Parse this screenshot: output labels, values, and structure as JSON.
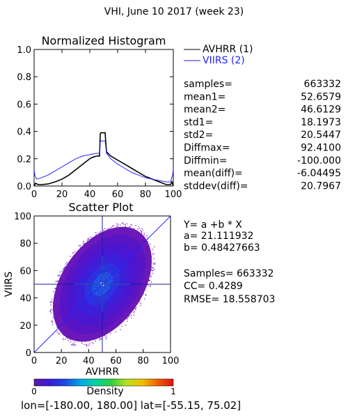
{
  "page_title": "VHI,  June 10 2017 (week 23)",
  "histogram": {
    "title": "Normalized Histogram",
    "legend": [
      {
        "name": "AVHRR (1)",
        "color": "#000000"
      },
      {
        "name": "VIIRS (2)",
        "color": "#2222ff"
      }
    ],
    "x_ticks": [
      "0",
      "20",
      "40",
      "60",
      "80",
      "100"
    ],
    "y_ticks": [
      "0.0",
      "0.2",
      "0.4",
      "0.6",
      "0.8",
      "1.0"
    ]
  },
  "stats": [
    {
      "label": "samples=",
      "value": "663332"
    },
    {
      "label": "mean1=",
      "value": "52.6579"
    },
    {
      "label": "mean2=",
      "value": "46.6129"
    },
    {
      "label": "std1=",
      "value": "18.1973"
    },
    {
      "label": "std2=",
      "value": "20.5447"
    },
    {
      "label": "Diffmax=",
      "value": "92.4100"
    },
    {
      "label": "Diffmin=",
      "value": "-100.000"
    },
    {
      "label": "mean(diff)=",
      "value": "-6.04495"
    },
    {
      "label": "stddev(diff)=",
      "value": "20.7967"
    }
  ],
  "scatter": {
    "title": "Scatter Plot",
    "xlabel": "AVHRR",
    "ylabel": "VIIRS",
    "x_ticks": [
      "0",
      "20",
      "40",
      "60",
      "80",
      "100"
    ],
    "y_ticks": [
      "0",
      "20",
      "40",
      "60",
      "80",
      "100"
    ]
  },
  "regression": {
    "line1": "Y= a +b * X",
    "line2": "a= 21.111932",
    "line3": "b= 0.48427663",
    "line4": "Samples= 663332",
    "line5": "CC=  0.4289",
    "line6": "RMSE= 18.558703"
  },
  "colorbar": {
    "min_label": "0",
    "max_label": "1",
    "label": "Density",
    "colors": [
      "#5b1aa6",
      "#3a1ad8",
      "#1a4ae0",
      "#00a8e8",
      "#00d4a0",
      "#30d040",
      "#b8e020",
      "#f0c000",
      "#f06000",
      "#e01010"
    ]
  },
  "footer": "lon=[-180.00, 180.00] lat=[-55.15, 75.02]",
  "chart_data": [
    {
      "type": "line",
      "title": "Normalized Histogram",
      "xlabel": "",
      "ylabel": "",
      "xlim": [
        0,
        100
      ],
      "ylim": [
        0,
        1.0
      ],
      "series": [
        {
          "name": "AVHRR (1)",
          "x": [
            0,
            1,
            3,
            5,
            10,
            15,
            20,
            25,
            30,
            35,
            40,
            42,
            45,
            46,
            47,
            47.5,
            48,
            50,
            51,
            52,
            55,
            60,
            65,
            70,
            75,
            80,
            85,
            90,
            95,
            98,
            99,
            100
          ],
          "y": [
            0.0,
            0.02,
            0.01,
            0.01,
            0.015,
            0.03,
            0.05,
            0.08,
            0.12,
            0.16,
            0.2,
            0.21,
            0.22,
            0.22,
            0.22,
            0.38,
            0.39,
            0.39,
            0.39,
            0.25,
            0.22,
            0.19,
            0.16,
            0.13,
            0.1,
            0.07,
            0.05,
            0.03,
            0.01,
            0.01,
            0.03,
            0.0
          ]
        },
        {
          "name": "VIIRS (2)",
          "x": [
            0,
            0.5,
            2,
            5,
            10,
            15,
            20,
            25,
            30,
            35,
            40,
            45,
            46,
            47,
            47.5,
            48,
            50,
            51,
            52,
            55,
            60,
            65,
            70,
            75,
            80,
            85,
            90,
            95,
            98,
            99.5,
            100
          ],
          "y": [
            0.12,
            0.08,
            0.05,
            0.06,
            0.08,
            0.11,
            0.14,
            0.17,
            0.2,
            0.22,
            0.23,
            0.24,
            0.24,
            0.24,
            0.32,
            0.33,
            0.33,
            0.33,
            0.24,
            0.2,
            0.16,
            0.13,
            0.1,
            0.08,
            0.06,
            0.05,
            0.04,
            0.03,
            0.03,
            0.08,
            0.12
          ]
        }
      ]
    },
    {
      "type": "scatter",
      "title": "Scatter Plot",
      "xlabel": "AVHRR",
      "ylabel": "VIIRS",
      "xlim": [
        0,
        100
      ],
      "ylim": [
        0,
        100
      ],
      "samples": 663332,
      "regression": {
        "a": 21.111932,
        "b": 0.48427663,
        "cc": 0.4289,
        "rmse": 18.558703
      },
      "density_center": [
        50,
        50
      ],
      "density_scale": [
        0,
        1
      ]
    }
  ]
}
